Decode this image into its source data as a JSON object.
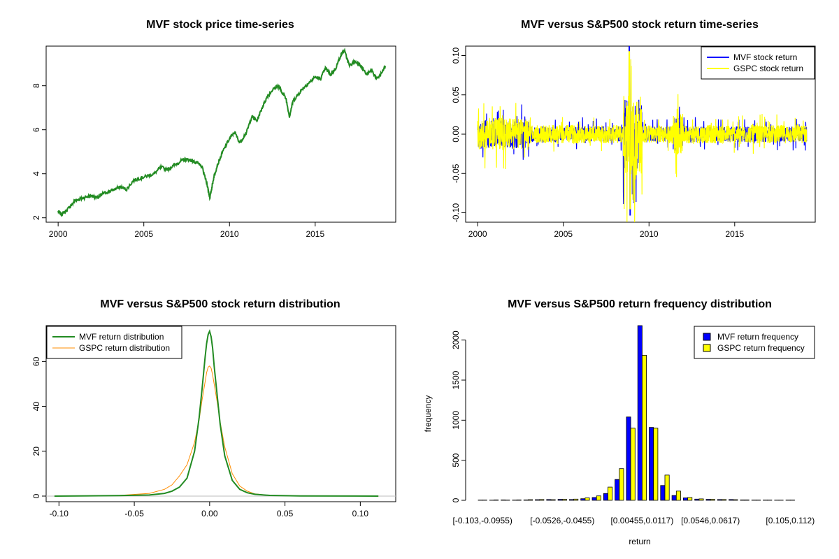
{
  "colors": {
    "green": "#228b22",
    "blue": "#0000ff",
    "yellow": "#ffff00",
    "orange": "#ff8c00",
    "grey": "#bebebe"
  },
  "chart_data": [
    {
      "type": "line",
      "title": "MVF stock price time-series",
      "xlabel": "",
      "ylabel": "",
      "xlim": [
        1999.3,
        2019.7
      ],
      "ylim": [
        1.8,
        9.8
      ],
      "xticks": [
        2000,
        2005,
        2010,
        2015
      ],
      "yticks": [
        2,
        4,
        6,
        8
      ],
      "x": [
        2000.0,
        2000.2,
        2000.5,
        2000.8,
        2001.0,
        2001.3,
        2001.6,
        2002.0,
        2002.3,
        2002.6,
        2003.0,
        2003.3,
        2003.6,
        2004.0,
        2004.4,
        2004.8,
        2005.2,
        2005.6,
        2006.0,
        2006.4,
        2006.8,
        2007.2,
        2007.5,
        2007.8,
        2008.1,
        2008.4,
        2008.7,
        2008.85,
        2008.95,
        2009.1,
        2009.3,
        2009.6,
        2010.0,
        2010.3,
        2010.6,
        2011.0,
        2011.3,
        2011.6,
        2011.9,
        2012.2,
        2012.5,
        2012.8,
        2013.0,
        2013.3,
        2013.5,
        2013.7,
        2014.0,
        2014.3,
        2014.6,
        2015.0,
        2015.3,
        2015.6,
        2015.9,
        2016.2,
        2016.5,
        2016.7,
        2017.0,
        2017.3,
        2017.6,
        2018.0,
        2018.3,
        2018.6,
        2018.9,
        2019.1
      ],
      "series": [
        {
          "name": "MVF stock price",
          "values": [
            2.3,
            2.15,
            2.35,
            2.6,
            2.8,
            2.85,
            2.95,
            3.0,
            2.9,
            3.1,
            3.2,
            3.3,
            3.4,
            3.3,
            3.7,
            3.8,
            3.9,
            4.0,
            4.3,
            4.2,
            4.4,
            4.6,
            4.65,
            4.6,
            4.5,
            4.3,
            3.5,
            2.9,
            3.3,
            3.9,
            4.4,
            5.0,
            5.6,
            5.9,
            5.4,
            5.9,
            6.6,
            6.4,
            7.0,
            7.5,
            7.8,
            8.0,
            7.8,
            7.4,
            6.6,
            7.3,
            7.6,
            7.9,
            8.1,
            8.4,
            8.3,
            8.8,
            8.5,
            8.8,
            9.4,
            9.6,
            8.9,
            9.1,
            9.0,
            8.5,
            8.7,
            8.3,
            8.6,
            8.9
          ]
        }
      ]
    },
    {
      "type": "line",
      "title": "MVF versus S&P500 stock return time-series",
      "xlabel": "",
      "ylabel": "",
      "xlim": [
        1999.3,
        2019.7
      ],
      "ylim": [
        -0.112,
        0.112
      ],
      "xticks": [
        2000,
        2005,
        2010,
        2015
      ],
      "yticks": [
        -0.1,
        -0.05,
        0.0,
        0.05,
        0.1
      ],
      "ytick_labels": [
        "-0.10",
        "-0.05",
        "0.00",
        "0.05",
        "0.10"
      ],
      "legend_position": "top-right",
      "series": [
        {
          "name": "MVF stock return",
          "color": "blue",
          "min": -0.103,
          "max": 0.112
        },
        {
          "name": "GSPC stock return",
          "color": "yellow",
          "min": -0.095,
          "max": 0.105
        }
      ]
    },
    {
      "type": "line",
      "title": "MVF versus S&P500 stock return distribution",
      "xlabel": "",
      "ylabel": "",
      "xlim": [
        -0.1085,
        0.1235
      ],
      "ylim": [
        -2.5,
        76
      ],
      "xticks": [
        -0.1,
        -0.05,
        0.0,
        0.05,
        0.1
      ],
      "xtick_labels": [
        "-0.10",
        "-0.05",
        "0.00",
        "0.05",
        "0.10"
      ],
      "yticks": [
        0,
        20,
        40,
        60
      ],
      "legend_position": "top-left",
      "x": [
        -0.103,
        -0.06,
        -0.04,
        -0.03,
        -0.025,
        -0.02,
        -0.015,
        -0.01,
        -0.007,
        -0.005,
        -0.003,
        -0.002,
        -0.001,
        0.0,
        0.001,
        0.002,
        0.003,
        0.005,
        0.007,
        0.01,
        0.015,
        0.02,
        0.025,
        0.03,
        0.04,
        0.06,
        0.112
      ],
      "series": [
        {
          "name": "MVF return distribution",
          "color": "green",
          "values": [
            0,
            0.2,
            0.5,
            1.2,
            2.2,
            4,
            8,
            20,
            35,
            48,
            62,
            68,
            72,
            73.5,
            71,
            66,
            58,
            45,
            32,
            18,
            7,
            3,
            1.5,
            0.8,
            0.3,
            0.1,
            0
          ]
        },
        {
          "name": "GSPC return distribution",
          "color": "orange",
          "values": [
            0,
            0.3,
            1.2,
            3,
            5,
            9,
            14,
            24,
            34,
            43,
            51,
            55,
            57.5,
            58,
            57,
            54,
            50,
            42,
            33,
            22,
            10,
            4.5,
            2.2,
            1,
            0.3,
            0.1,
            0
          ]
        }
      ]
    },
    {
      "type": "bar",
      "title": "MVF versus S&P500 return frequency distribution",
      "xlabel": "return",
      "ylabel": "frequency",
      "ylim": [
        0,
        2180
      ],
      "yticks": [
        0,
        500,
        1000,
        1500,
        2000
      ],
      "legend_position": "top-right",
      "categories": [
        "[-0.103,-0.0955)",
        "",
        "",
        "",
        "",
        "",
        "",
        "[-0.0526,-0.0455)",
        "",
        "",
        "",
        "",
        "",
        "",
        "[0.00455,0.0117)",
        "",
        "",
        "",
        "",
        "",
        "[0.0546,0.0617)",
        "",
        "",
        "",
        "",
        "",
        "",
        "[0.105,0.112)"
      ],
      "series": [
        {
          "name": "MVF return frequency",
          "color": "blue",
          "values": [
            3,
            2,
            5,
            3,
            5,
            8,
            10,
            12,
            10,
            20,
            35,
            85,
            260,
            1040,
            2200,
            910,
            185,
            60,
            30,
            15,
            12,
            10,
            10,
            5,
            3,
            3,
            2,
            3
          ]
        },
        {
          "name": "GSPC return frequency",
          "color": "yellow",
          "values": [
            3,
            5,
            3,
            5,
            8,
            10,
            8,
            12,
            15,
            30,
            55,
            165,
            395,
            900,
            1810,
            900,
            315,
            115,
            35,
            18,
            12,
            10,
            8,
            5,
            3,
            3,
            2,
            3
          ]
        }
      ]
    }
  ]
}
